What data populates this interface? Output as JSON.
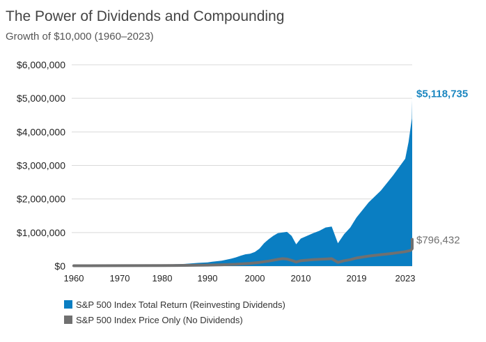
{
  "header": {
    "title": "The Power of Dividends and Compounding",
    "subtitle": "Growth of $10,000 (1960–2023)"
  },
  "colors": {
    "total_return": "#0a7ec2",
    "price_only": "#707070",
    "total_label": "#1a86c0",
    "price_label": "#707070",
    "grid": "#d9d9d9"
  },
  "chart_data": {
    "type": "area",
    "title": "The Power of Dividends and Compounding",
    "subtitle": "Growth of $10,000 (1960–2023)",
    "xlabel": "",
    "ylabel": "",
    "xlim": [
      1960,
      2024
    ],
    "ylim": [
      0,
      6000000
    ],
    "y_ticks": [
      {
        "value": 0,
        "label": "$0"
      },
      {
        "value": 1000000,
        "label": "$1,000,000"
      },
      {
        "value": 2000000,
        "label": "$2,000,000"
      },
      {
        "value": 3000000,
        "label": "$3,000,000"
      },
      {
        "value": 4000000,
        "label": "$4,000,000"
      },
      {
        "value": 5000000,
        "label": "$5,000,000"
      },
      {
        "value": 6000000,
        "label": "$6,000,000"
      }
    ],
    "x_ticks": [
      {
        "value": 1960,
        "label": "1960"
      },
      {
        "value": 1970,
        "label": "1970"
      },
      {
        "value": 1980,
        "label": "1980"
      },
      {
        "value": 1990,
        "label": "1990"
      },
      {
        "value": 2000,
        "label": "2000"
      },
      {
        "value": 2010,
        "label": "2010"
      },
      {
        "value": 2019,
        "label": "2019"
      },
      {
        "value": 2023,
        "label": "2023"
      }
    ],
    "grid": "horizontal",
    "legend_position": "bottom-left",
    "series": [
      {
        "name": "S&P 500 Index Total Return (Reinvesting Dividends)",
        "style": "area",
        "end_label": "$5,118,735",
        "points": [
          [
            1960,
            10000
          ],
          [
            1965,
            18000
          ],
          [
            1970,
            25000
          ],
          [
            1975,
            30000
          ],
          [
            1980,
            40000
          ],
          [
            1985,
            65000
          ],
          [
            1988,
            95000
          ],
          [
            1990,
            110000
          ],
          [
            1991,
            130000
          ],
          [
            1993,
            160000
          ],
          [
            1995,
            220000
          ],
          [
            1996,
            260000
          ],
          [
            1997,
            310000
          ],
          [
            1998,
            350000
          ],
          [
            1999,
            370000
          ],
          [
            2000,
            420000
          ],
          [
            2001,
            520000
          ],
          [
            2002,
            680000
          ],
          [
            2003,
            800000
          ],
          [
            2004,
            900000
          ],
          [
            2005,
            980000
          ],
          [
            2006,
            1000000
          ],
          [
            2007,
            1020000
          ],
          [
            2008,
            900000
          ],
          [
            2009,
            650000
          ],
          [
            2010,
            820000
          ],
          [
            2011,
            900000
          ],
          [
            2012,
            980000
          ],
          [
            2013,
            1050000
          ],
          [
            2014,
            1150000
          ],
          [
            2015,
            1180000
          ],
          [
            2016,
            680000
          ],
          [
            2017,
            950000
          ],
          [
            2018,
            1150000
          ],
          [
            2019,
            1450000
          ],
          [
            2020,
            1900000
          ],
          [
            2021,
            2250000
          ],
          [
            2022,
            2700000
          ],
          [
            2023,
            3200000
          ],
          [
            2023.6,
            3700000
          ],
          [
            2024.2,
            4400000
          ],
          [
            2024.9,
            4950000
          ],
          [
            2025.5,
            3900000
          ],
          [
            2026.2,
            4250000
          ],
          [
            2027,
            4400000
          ],
          [
            2027.8,
            4950000
          ],
          [
            2028.2,
            5118735
          ]
        ]
      },
      {
        "name": "S&P 500 Index Price Only (No Dividends)",
        "style": "line",
        "end_label": "$796,432",
        "points": [
          [
            1960,
            10000
          ],
          [
            1970,
            12000
          ],
          [
            1980,
            15000
          ],
          [
            1985,
            20000
          ],
          [
            1990,
            30000
          ],
          [
            1993,
            40000
          ],
          [
            1996,
            55000
          ],
          [
            1999,
            80000
          ],
          [
            2001,
            110000
          ],
          [
            2003,
            150000
          ],
          [
            2005,
            200000
          ],
          [
            2006,
            220000
          ],
          [
            2007,
            210000
          ],
          [
            2008,
            170000
          ],
          [
            2009,
            120000
          ],
          [
            2010,
            160000
          ],
          [
            2012,
            190000
          ],
          [
            2014,
            210000
          ],
          [
            2015,
            220000
          ],
          [
            2016,
            110000
          ],
          [
            2017,
            160000
          ],
          [
            2018,
            190000
          ],
          [
            2019,
            240000
          ],
          [
            2020,
            300000
          ],
          [
            2021,
            340000
          ],
          [
            2022,
            380000
          ],
          [
            2023,
            430000
          ],
          [
            2024,
            470000
          ],
          [
            2025,
            520000
          ],
          [
            2026,
            560000
          ],
          [
            2026.5,
            750000
          ],
          [
            2027,
            620000
          ],
          [
            2027.6,
            700000
          ],
          [
            2028.2,
            796432
          ]
        ]
      }
    ]
  }
}
